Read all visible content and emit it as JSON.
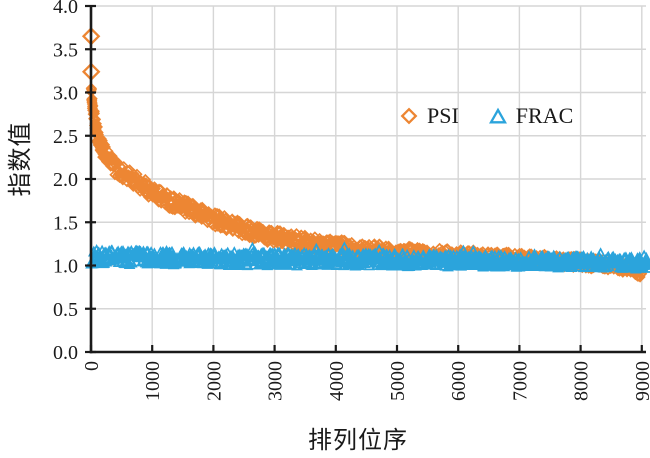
{
  "chart_data": {
    "type": "scatter",
    "title": "",
    "xlabel": "排列位序",
    "ylabel": "指数值",
    "xlim": [
      0,
      9000
    ],
    "ylim": [
      0.0,
      4.0
    ],
    "x_ticks": [
      0,
      1000,
      2000,
      3000,
      4000,
      5000,
      6000,
      7000,
      8000,
      9000
    ],
    "y_tick_labels": [
      "0.0",
      "0.5",
      "1.0",
      "1.5",
      "2.0",
      "2.5",
      "3.0",
      "3.5",
      "4.0"
    ],
    "grid": true,
    "gridline_color": "#d6d6d6",
    "axis_color": "#1a1a1a",
    "legend_position": "inside-top-right",
    "x_tick_label_rotation": -90,
    "series": [
      {
        "name": "PSI",
        "marker": "diamond",
        "color": "#ED8633",
        "point_count": 9000,
        "outlier_points": [
          [
            2,
            3.65
          ],
          [
            3,
            3.24
          ]
        ],
        "anchor_points": [
          [
            1,
            3.05
          ],
          [
            30,
            2.8
          ],
          [
            80,
            2.57
          ],
          [
            150,
            2.4
          ],
          [
            250,
            2.26
          ],
          [
            400,
            2.13
          ],
          [
            600,
            2.03
          ],
          [
            800,
            1.95
          ],
          [
            1000,
            1.85
          ],
          [
            1250,
            1.76
          ],
          [
            1500,
            1.68
          ],
          [
            1750,
            1.61
          ],
          [
            2000,
            1.54
          ],
          [
            2250,
            1.48
          ],
          [
            2500,
            1.42
          ],
          [
            2750,
            1.37
          ],
          [
            3000,
            1.33
          ],
          [
            3500,
            1.27
          ],
          [
            4000,
            1.23
          ],
          [
            4500,
            1.19
          ],
          [
            5000,
            1.16
          ],
          [
            5500,
            1.135
          ],
          [
            6000,
            1.115
          ],
          [
            6500,
            1.1
          ],
          [
            7000,
            1.08
          ],
          [
            7500,
            1.06
          ],
          [
            8000,
            1.035
          ],
          [
            8500,
            1.005
          ],
          [
            8800,
            0.97
          ],
          [
            9000,
            0.92
          ]
        ],
        "scatter_band_halfwidth": 0.095
      },
      {
        "name": "FRAC",
        "marker": "triangle",
        "color": "#2BA4DC",
        "point_count": 9100,
        "outlier_points": [],
        "anchor_points": [
          [
            1,
            1.09
          ],
          [
            500,
            1.088
          ],
          [
            1000,
            1.085
          ],
          [
            1500,
            1.08
          ],
          [
            2000,
            1.075
          ],
          [
            2500,
            1.072
          ],
          [
            3000,
            1.068
          ],
          [
            4000,
            1.062
          ],
          [
            5000,
            1.058
          ],
          [
            6000,
            1.052
          ],
          [
            7000,
            1.045
          ],
          [
            8000,
            1.038
          ],
          [
            9100,
            1.02
          ]
        ],
        "scatter_band_halfwidth": 0.08
      }
    ]
  }
}
